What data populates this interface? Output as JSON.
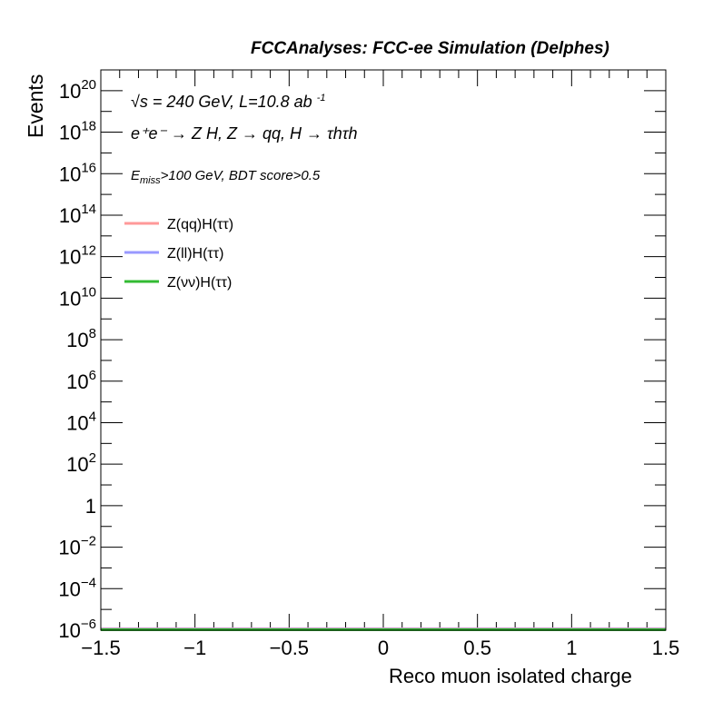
{
  "header": "FCCAnalyses: FCC-ee Simulation (Delphes)",
  "annotations": {
    "energy": "√s = 240 GeV, L=10.8 ab",
    "lumi_exp": "-1",
    "process": "e⁺e⁻ → Z H, Z → qq, H → τhτh",
    "cuts_sym": "E",
    "cuts_sub": "miss",
    "cuts_rest": ">100 GeV, BDT score>0.5"
  },
  "chart_data": {
    "type": "line",
    "xlabel": "Reco muon isolated charge",
    "ylabel": "Events",
    "xlim": [
      -1.5,
      1.5
    ],
    "ylim": [
      1e-06,
      1e+21
    ],
    "yscale": "log",
    "xticks": [
      "−1.5",
      "−1",
      "−0.5",
      "0",
      "0.5",
      "1",
      "1.5"
    ],
    "xtick_values": [
      -1.5,
      -1,
      -0.5,
      0,
      0.5,
      1,
      1.5
    ],
    "yticks": [
      {
        "base": "10",
        "exp": "20",
        "value": 1e+20
      },
      {
        "base": "10",
        "exp": "18",
        "value": 1e+18
      },
      {
        "base": "10",
        "exp": "16",
        "value": 1e+16
      },
      {
        "base": "10",
        "exp": "14",
        "value": 100000000000000.0
      },
      {
        "base": "10",
        "exp": "12",
        "value": 1000000000000.0
      },
      {
        "base": "10",
        "exp": "10",
        "value": 10000000000.0
      },
      {
        "base": "10",
        "exp": "8",
        "value": 100000000.0
      },
      {
        "base": "10",
        "exp": "6",
        "value": 1000000.0
      },
      {
        "base": "10",
        "exp": "4",
        "value": 10000.0
      },
      {
        "base": "10",
        "exp": "2",
        "value": 100
      },
      {
        "base": "1",
        "exp": "",
        "value": 1
      },
      {
        "base": "10",
        "exp": "−2",
        "value": 0.01
      },
      {
        "base": "10",
        "exp": "−4",
        "value": 0.0001
      },
      {
        "base": "10",
        "exp": "−6",
        "value": 1e-06
      }
    ],
    "legend_position": "top-left",
    "series": [
      {
        "name": "Z(qq)H(ττ)",
        "color": "#ff9999",
        "x": [
          -1.5,
          1.5
        ],
        "y": [
          1e-06,
          1e-06
        ]
      },
      {
        "name": "Z(ll)H(ττ)",
        "color": "#9999ff",
        "x": [
          -1.5,
          1.5
        ],
        "y": [
          1e-06,
          1e-06
        ]
      },
      {
        "name": "Z(νν)H(ττ)",
        "color": "#33bb33",
        "x": [
          -1.5,
          1.5
        ],
        "y": [
          1e-06,
          1e-06
        ]
      }
    ]
  }
}
